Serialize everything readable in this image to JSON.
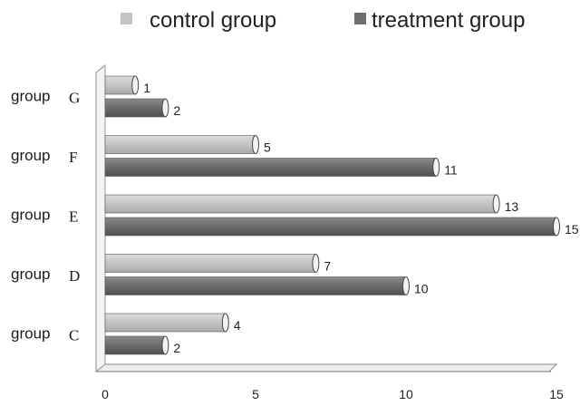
{
  "chart_data": {
    "type": "bar",
    "orientation": "horizontal",
    "categories": [
      {
        "prefix": "group",
        "letter": "G"
      },
      {
        "prefix": "group",
        "letter": "F"
      },
      {
        "prefix": "group",
        "letter": "E"
      },
      {
        "prefix": "group",
        "letter": "D"
      },
      {
        "prefix": "group",
        "letter": "C"
      }
    ],
    "series": [
      {
        "name": "control group",
        "color": "#c4c4c4",
        "values": [
          1,
          5,
          13,
          7,
          4
        ]
      },
      {
        "name": "treatment group",
        "color": "#6f6f6f",
        "values": [
          2,
          11,
          15,
          10,
          2
        ]
      }
    ],
    "xlim": [
      0,
      15
    ],
    "xticks": [
      "0",
      "5",
      "10",
      "15"
    ],
    "legend_position": "top",
    "grid": false,
    "style": "3d-cylinder"
  }
}
